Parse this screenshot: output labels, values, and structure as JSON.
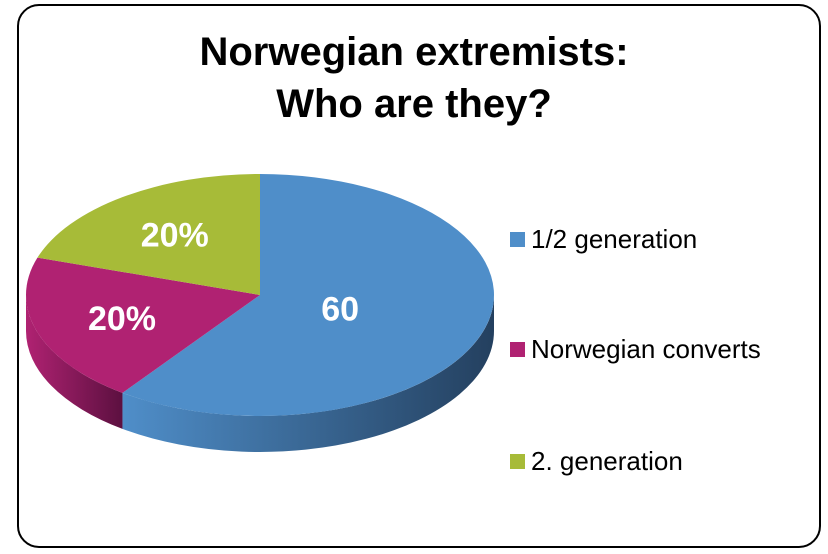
{
  "chart_data": {
    "type": "pie",
    "title_line1": "Norwegian extremists:",
    "title_line2": "Who are they?",
    "slices": [
      {
        "name": "1/2 generation",
        "value": 60,
        "label": "60",
        "color": "#4f8ec9",
        "dark": "#24405f"
      },
      {
        "name": "Norwegian converts",
        "value": 20,
        "label": "20%",
        "color": "#b02272",
        "dark": "#5c1040"
      },
      {
        "name": "2. generation",
        "value": 20,
        "label": "20%",
        "color": "#a7bb38",
        "dark": "#5f6b1c"
      }
    ],
    "legend_position": "right"
  }
}
